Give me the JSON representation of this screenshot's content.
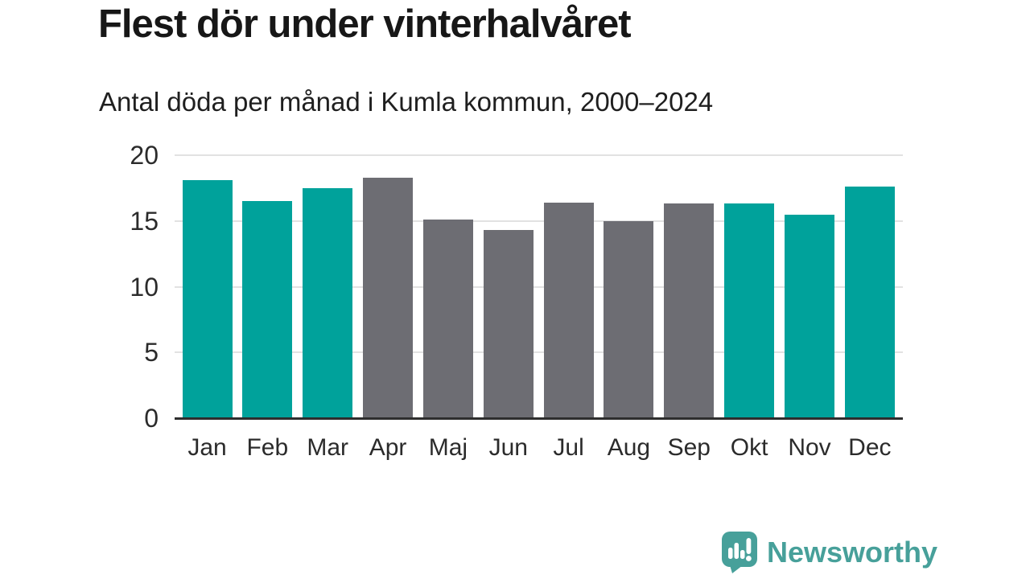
{
  "title": "Flest dör under vinterhalvåret",
  "subtitle": "Antal döda per månad i Kumla kommun, 2000–2024",
  "branding": {
    "logo_text": "Newsworthy",
    "logo_icon": "newsworthy-chart-bubble-icon",
    "logo_color": "#47a09a"
  },
  "chart_data": {
    "type": "bar",
    "title": "Flest dör under vinterhalvåret",
    "subtitle": "Antal döda per månad i Kumla kommun, 2000–2024",
    "categories": [
      "Jan",
      "Feb",
      "Mar",
      "Apr",
      "Maj",
      "Jun",
      "Jul",
      "Aug",
      "Sep",
      "Okt",
      "Nov",
      "Dec"
    ],
    "values": [
      18.1,
      16.5,
      17.5,
      18.3,
      15.1,
      14.3,
      16.4,
      15.0,
      16.3,
      16.3,
      15.5,
      17.6
    ],
    "highlight": [
      true,
      true,
      true,
      false,
      false,
      false,
      false,
      false,
      false,
      true,
      true,
      true
    ],
    "highlight_color": "#00a29b",
    "base_color": "#6d6d73",
    "yticks": [
      0,
      5,
      10,
      15,
      20
    ],
    "ylim": [
      0,
      20
    ],
    "grid": true,
    "gridline_color": "#e2e2e2",
    "axis_color": "#2e2e2e",
    "xlabel": "",
    "ylabel": "",
    "legend": "none"
  }
}
